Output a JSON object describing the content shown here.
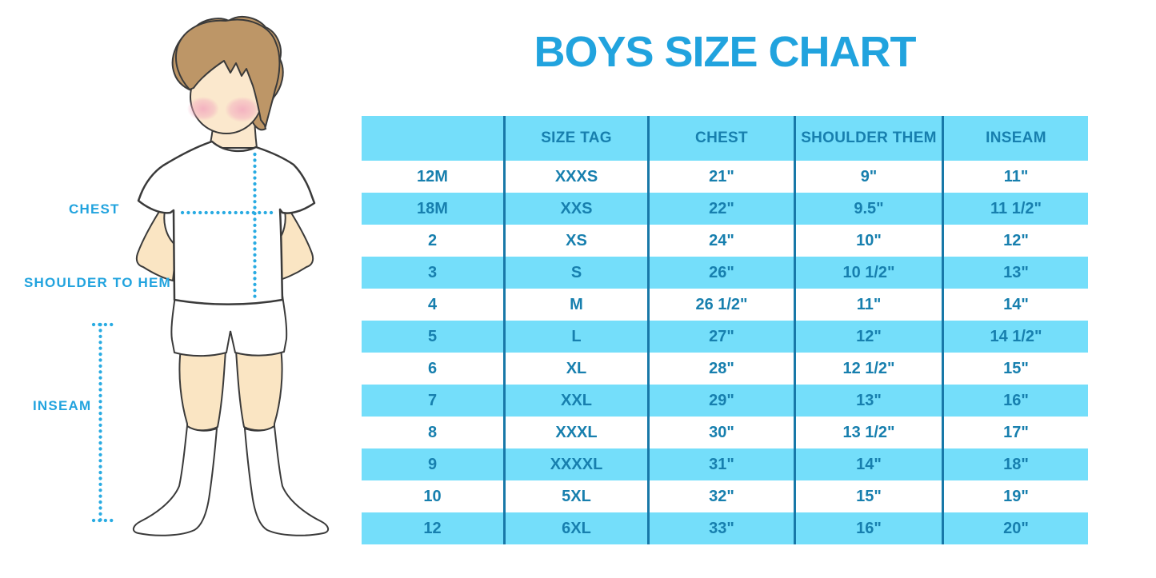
{
  "title": "BOYS SIZE CHART",
  "figure_labels": {
    "chest": "CHEST",
    "shoulder_to_hem": "SHOULDER TO HEM",
    "inseam": "INSEAM"
  },
  "chart_data": {
    "type": "table",
    "title": "BOYS SIZE CHART",
    "columns": [
      "",
      "SIZE TAG",
      "CHEST",
      "SHOULDER THEM",
      "INSEAM"
    ],
    "rows": [
      [
        "12M",
        "XXXS",
        "21\"",
        "9\"",
        "11\""
      ],
      [
        "18M",
        "XXS",
        "22\"",
        "9.5\"",
        "11 1/2\""
      ],
      [
        "2",
        "XS",
        "24\"",
        "10\"",
        "12\""
      ],
      [
        "3",
        "S",
        "26\"",
        "10 1/2\"",
        "13\""
      ],
      [
        "4",
        "M",
        "26 1/2\"",
        "11\"",
        "14\""
      ],
      [
        "5",
        "L",
        "27\"",
        "12\"",
        "14 1/2\""
      ],
      [
        "6",
        "XL",
        "28\"",
        "12 1/2\"",
        "15\""
      ],
      [
        "7",
        "XXL",
        "29\"",
        "13\"",
        "16\""
      ],
      [
        "8",
        "XXXL",
        "30\"",
        "13 1/2\"",
        "17\""
      ],
      [
        "9",
        "XXXXL",
        "31\"",
        "14\"",
        "18\""
      ],
      [
        "10",
        "5XL",
        "32\"",
        "15\"",
        "19\""
      ],
      [
        "12",
        "6XL",
        "33\"",
        "16\"",
        "20\""
      ]
    ],
    "striped_row_indices": [
      1,
      3,
      5,
      7,
      9,
      11
    ],
    "legend_position": "none",
    "grid": "column-dividers-only"
  },
  "colors": {
    "title_blue": "#21A3DE",
    "stripe_blue": "#74DEFA",
    "table_text_blue": "#177FAE",
    "divider_blue": "#1878A8",
    "dotted_line_blue": "#29ABE2",
    "hair_brown": "#BD9667",
    "skin": "#FBE8CD",
    "blush_pink": "#F2A9BE",
    "outline": "#3A3A3A"
  }
}
